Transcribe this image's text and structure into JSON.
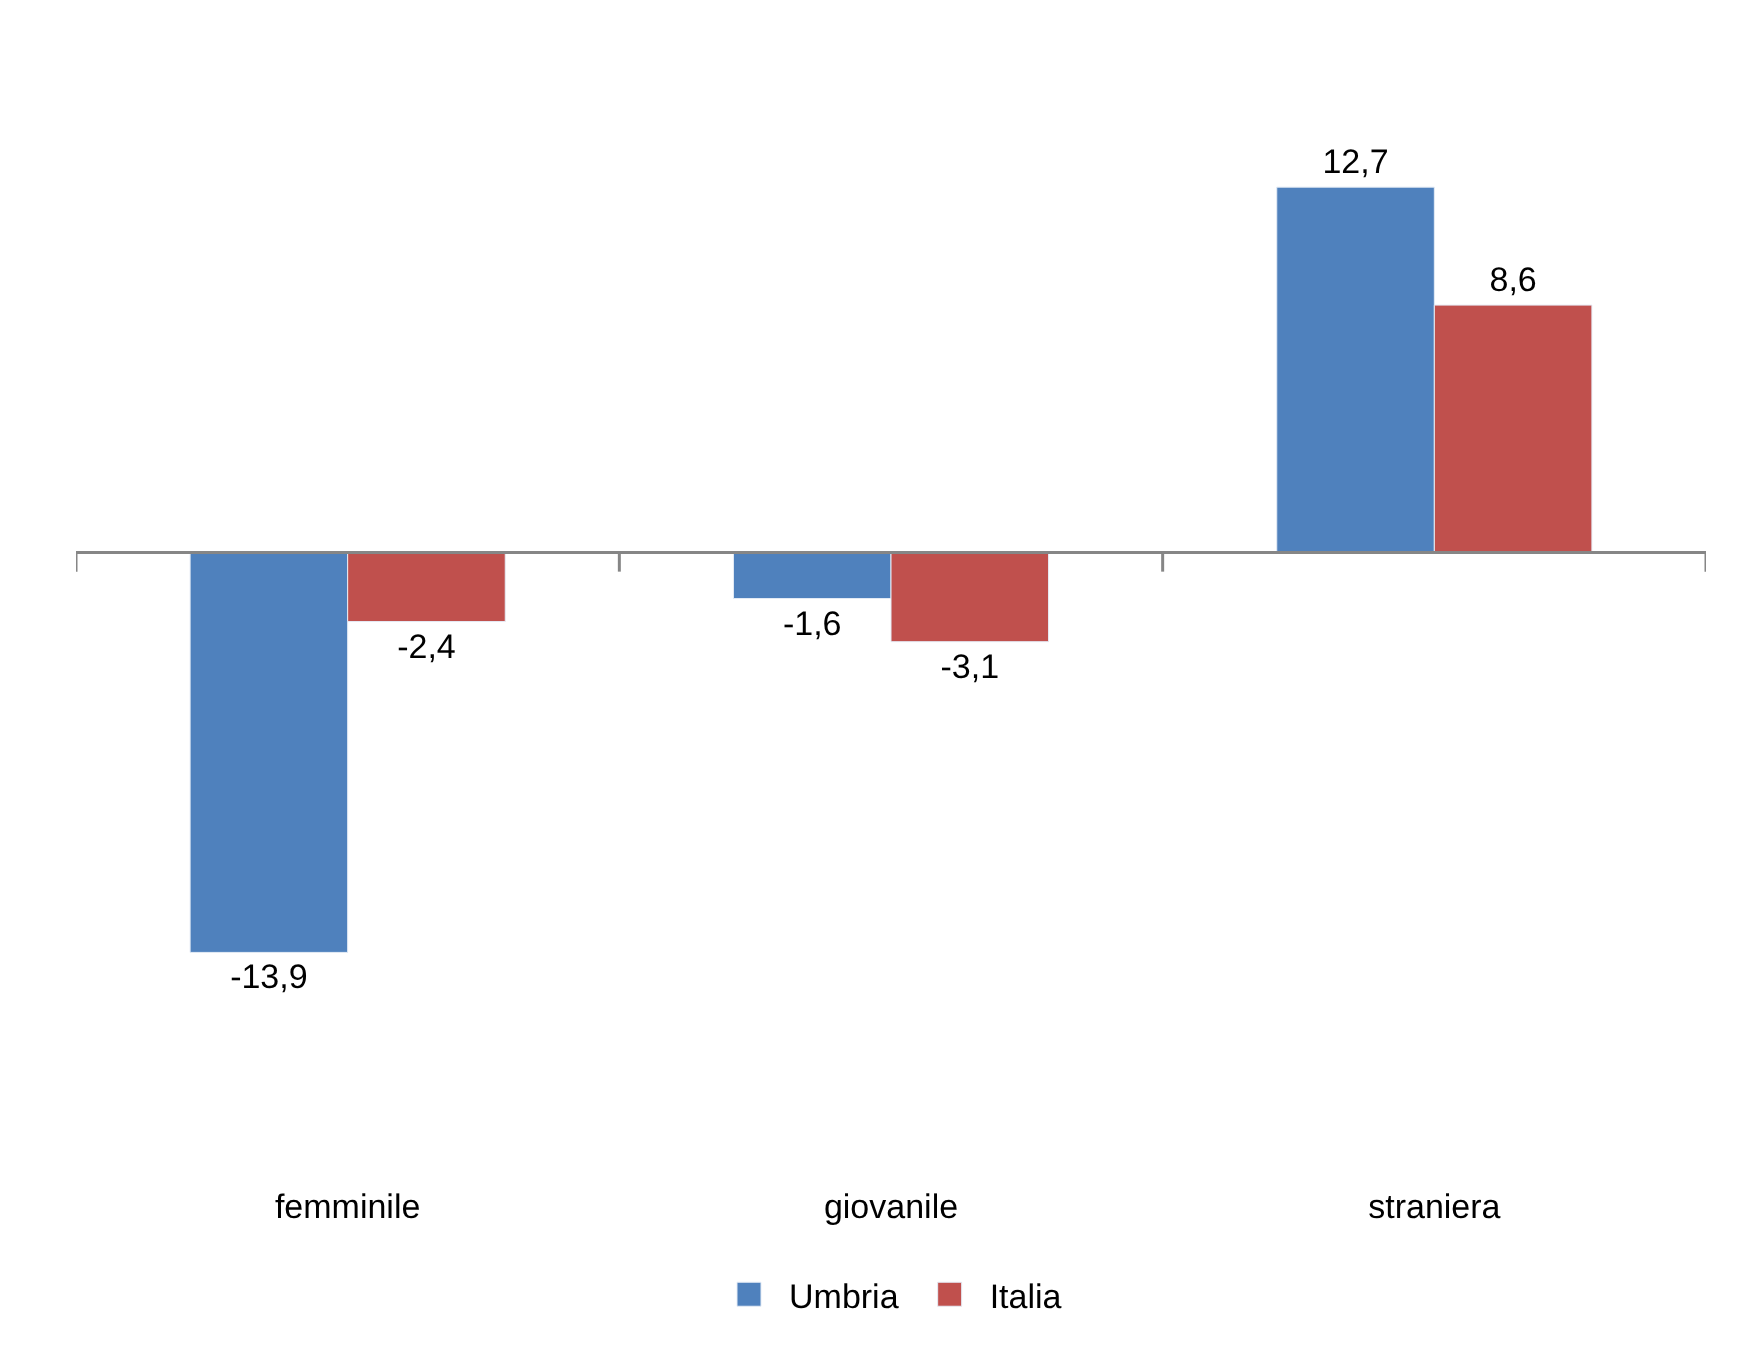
{
  "chart_data": {
    "type": "bar",
    "categories": [
      "femminile",
      "giovanile",
      "straniera"
    ],
    "series": [
      {
        "name": "Umbria",
        "color": "#4f81bd",
        "values": [
          -13.9,
          -1.6,
          12.7
        ],
        "value_labels": [
          "-13,9",
          "-1,6",
          "12,7"
        ]
      },
      {
        "name": "Italia",
        "color": "#c0504d",
        "values": [
          -2.4,
          -3.1,
          8.6
        ],
        "value_labels": [
          "-2,4",
          "-3,1",
          "8,6"
        ]
      }
    ],
    "legend": "bottom"
  }
}
